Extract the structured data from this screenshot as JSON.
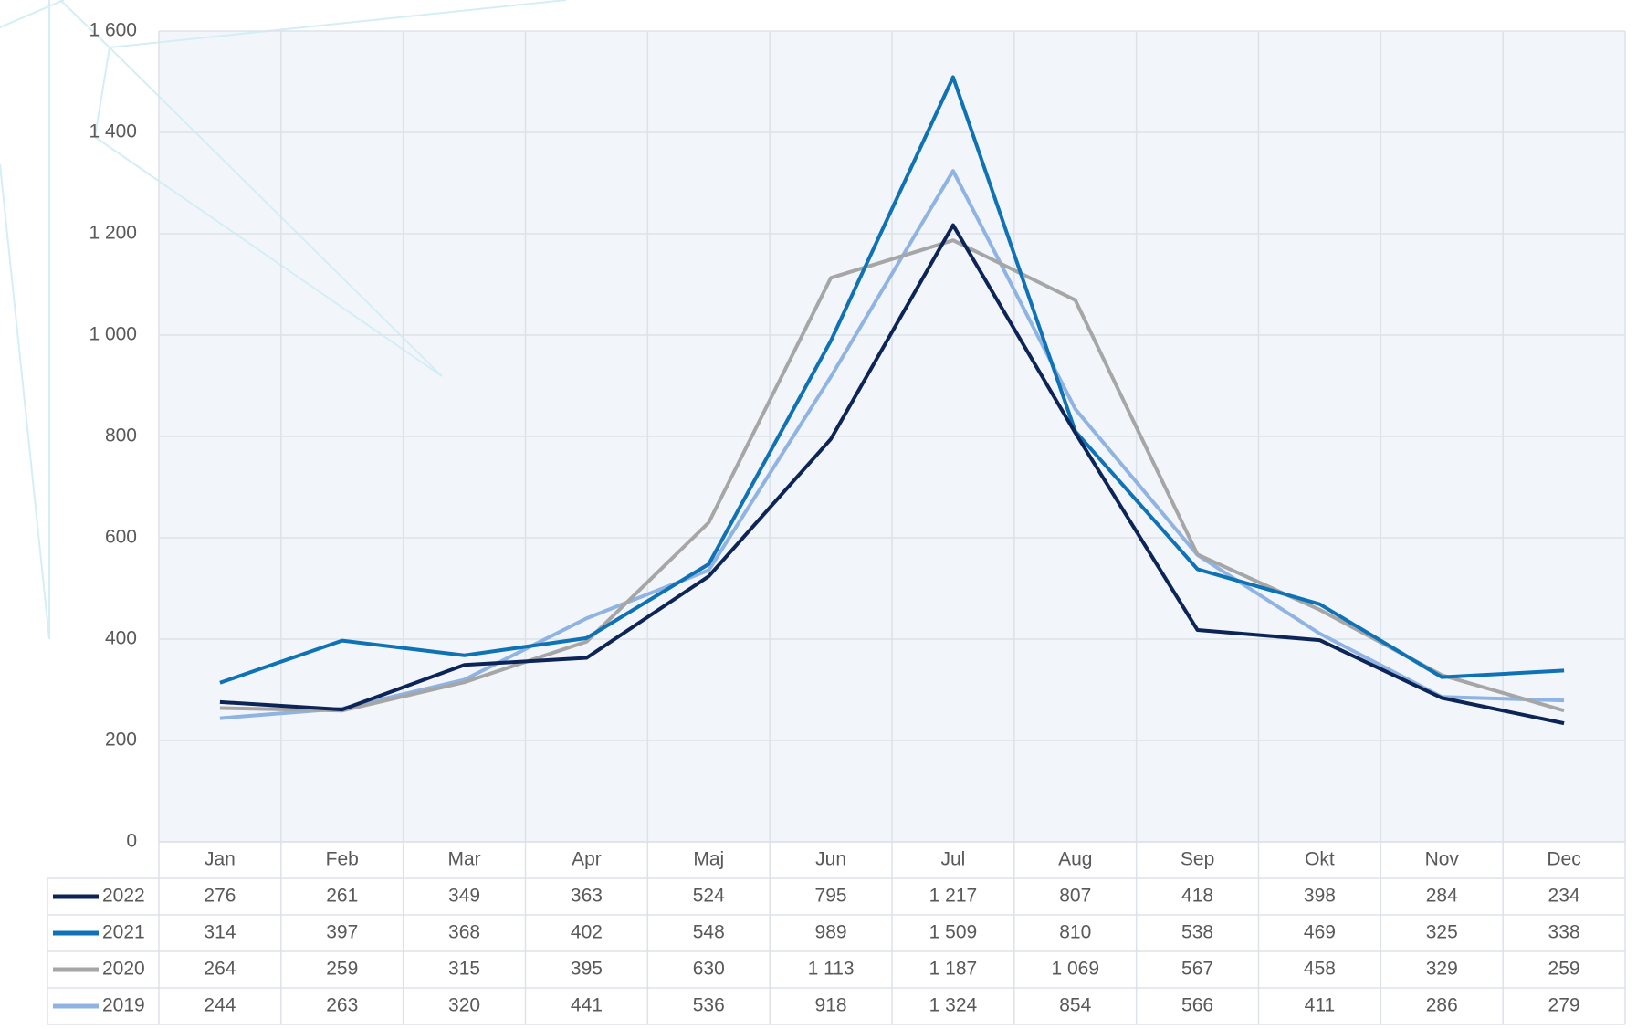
{
  "chart_data": {
    "type": "line",
    "categories": [
      "Jan",
      "Feb",
      "Mar",
      "Apr",
      "Maj",
      "Jun",
      "Jul",
      "Aug",
      "Sep",
      "Okt",
      "Nov",
      "Dec"
    ],
    "series": [
      {
        "name": "2022",
        "color": "#0d2457",
        "values": [
          276,
          261,
          349,
          363,
          524,
          795,
          1217,
          807,
          418,
          398,
          284,
          234
        ],
        "value_labels": [
          "276",
          "261",
          "349",
          "363",
          "524",
          "795",
          "1 217",
          "807",
          "418",
          "398",
          "284",
          "234"
        ]
      },
      {
        "name": "2021",
        "color": "#0e72b5",
        "values": [
          314,
          397,
          368,
          402,
          548,
          989,
          1509,
          810,
          538,
          469,
          325,
          338
        ],
        "value_labels": [
          "314",
          "397",
          "368",
          "402",
          "548",
          "989",
          "1 509",
          "810",
          "538",
          "469",
          "325",
          "338"
        ]
      },
      {
        "name": "2020",
        "color": "#a6a6a6",
        "values": [
          264,
          259,
          315,
          395,
          630,
          1113,
          1187,
          1069,
          567,
          458,
          329,
          259
        ],
        "value_labels": [
          "264",
          "259",
          "315",
          "395",
          "630",
          "1 113",
          "1 187",
          "1 069",
          "567",
          "458",
          "329",
          "259"
        ]
      },
      {
        "name": "2019",
        "color": "#8fb4e3",
        "values": [
          244,
          263,
          320,
          441,
          536,
          918,
          1324,
          854,
          566,
          411,
          286,
          279
        ],
        "value_labels": [
          "244",
          "263",
          "320",
          "441",
          "536",
          "918",
          "1 324",
          "854",
          "566",
          "411",
          "286",
          "279"
        ]
      }
    ],
    "ylim": [
      0,
      1600
    ],
    "yticks": [
      0,
      200,
      400,
      600,
      800,
      {
        "value": 1000,
        "label": "1 000"
      },
      {
        "value": 1200,
        "label": "1 200"
      },
      {
        "value": 1400,
        "label": "1 400"
      },
      {
        "value": 1600,
        "label": "1 600"
      }
    ],
    "grid": true
  }
}
